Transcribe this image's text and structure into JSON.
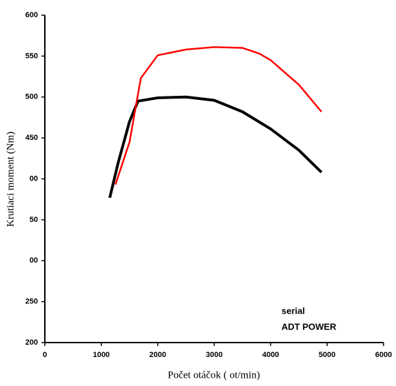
{
  "chart_data": {
    "type": "line",
    "x_label": "Počet otáčok ( ot/min)",
    "y_label": "Krutiaci moment (Nm)",
    "xlim": [
      0,
      6000
    ],
    "xticks": [
      0,
      1000,
      2000,
      3000,
      4000,
      5000,
      6000
    ],
    "ylim": [
      200,
      600
    ],
    "yticks": [
      200,
      250,
      {
        "value": 300,
        "label": "00"
      },
      {
        "value": 350,
        "label": "50"
      },
      {
        "value": 400,
        "label": "00"
      },
      450,
      500,
      550,
      600
    ],
    "grid": false,
    "series": [
      {
        "name": "serial",
        "color": "#000000",
        "x": [
          1150,
          1300,
          1500,
          1650,
          2000,
          2500,
          3000,
          3500,
          4000,
          4500,
          4900
        ],
        "values": [
          377,
          420,
          470,
          495,
          499,
          500,
          496,
          482,
          461,
          435,
          408
        ]
      },
      {
        "name": "ADT POWER",
        "color": "#ff0000",
        "x": [
          1250,
          1500,
          1700,
          2000,
          2500,
          3000,
          3500,
          3800,
          4000,
          4500,
          4900
        ],
        "values": [
          393,
          445,
          523,
          551,
          558,
          561,
          560,
          553,
          545,
          515,
          482
        ]
      }
    ]
  }
}
